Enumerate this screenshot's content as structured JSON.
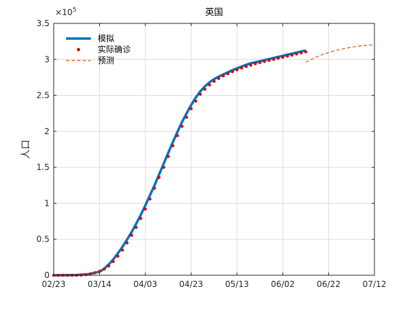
{
  "chart_data": {
    "type": "line",
    "title": "英国",
    "xlabel": "",
    "ylabel": "人口",
    "y_multiplier": "×10",
    "y_multiplier_exp": "5",
    "x_ticks": [
      "02/23",
      "03/14",
      "04/03",
      "04/23",
      "05/13",
      "06/02",
      "06/22",
      "07/12"
    ],
    "y_ticks": [
      "0",
      "0.5",
      "1",
      "1.5",
      "2",
      "2.5",
      "3",
      "3.5"
    ],
    "xlim_days": [
      0,
      140
    ],
    "ylim": [
      0,
      350000
    ],
    "grid": true,
    "legend_position": "top-left",
    "series": [
      {
        "name": "模拟",
        "style": "thick-solid",
        "color": "#0072bd",
        "x_days": [
          0,
          10,
          15,
          20,
          22,
          24,
          26,
          28,
          30,
          32,
          34,
          36,
          38,
          40,
          42,
          44,
          46,
          48,
          50,
          52,
          54,
          56,
          58,
          60,
          62,
          64,
          66,
          68,
          70,
          72,
          74,
          76,
          78,
          80,
          82,
          84,
          86,
          88,
          90,
          92,
          94,
          96,
          98,
          100,
          102,
          104,
          106,
          108,
          110
        ],
        "values": [
          0,
          400,
          1500,
          5000,
          9000,
          15000,
          22000,
          30500,
          39500,
          49500,
          60000,
          71500,
          84000,
          97000,
          111000,
          125000,
          140000,
          155000,
          170000,
          185000,
          199000,
          213000,
          225000,
          236500,
          247000,
          255500,
          262500,
          268000,
          272500,
          276000,
          279000,
          282000,
          285000,
          287500,
          290000,
          292500,
          294500,
          296000,
          297500,
          299000,
          300500,
          302000,
          303500,
          305000,
          306500,
          308000,
          309500,
          311000,
          312500
        ]
      },
      {
        "name": "实际确诊",
        "style": "dots",
        "color": "#e00000",
        "x_days": [
          0,
          2,
          4,
          6,
          8,
          10,
          12,
          14,
          16,
          18,
          20,
          22,
          24,
          26,
          28,
          30,
          32,
          34,
          36,
          38,
          40,
          42,
          44,
          46,
          48,
          50,
          52,
          54,
          56,
          58,
          60,
          62,
          64,
          66,
          68,
          70,
          72,
          74,
          76,
          78,
          80,
          82,
          84,
          86,
          88,
          90,
          92,
          94,
          96,
          98,
          100,
          102,
          104,
          106,
          108,
          110
        ],
        "values": [
          0,
          0,
          0,
          0,
          0,
          0,
          300,
          800,
          2000,
          3500,
          5500,
          8500,
          13000,
          19000,
          26500,
          35000,
          45000,
          55500,
          66500,
          79000,
          92000,
          106000,
          121000,
          136000,
          150000,
          165000,
          180000,
          194000,
          207000,
          219500,
          231500,
          242000,
          251500,
          258500,
          264500,
          269500,
          273500,
          277000,
          280000,
          283000,
          285500,
          288000,
          290000,
          292000,
          294000,
          295500,
          297000,
          298500,
          300000,
          301500,
          303000,
          304500,
          306000,
          307500,
          309000,
          310500
        ]
      },
      {
        "name": "预测",
        "style": "dashed",
        "color": "#d95319",
        "x_days": [
          110,
          114,
          118,
          122,
          126,
          130,
          134,
          138,
          140
        ],
        "values": [
          296000,
          302500,
          307500,
          311500,
          314500,
          317000,
          318800,
          320000,
          320500
        ]
      }
    ]
  }
}
